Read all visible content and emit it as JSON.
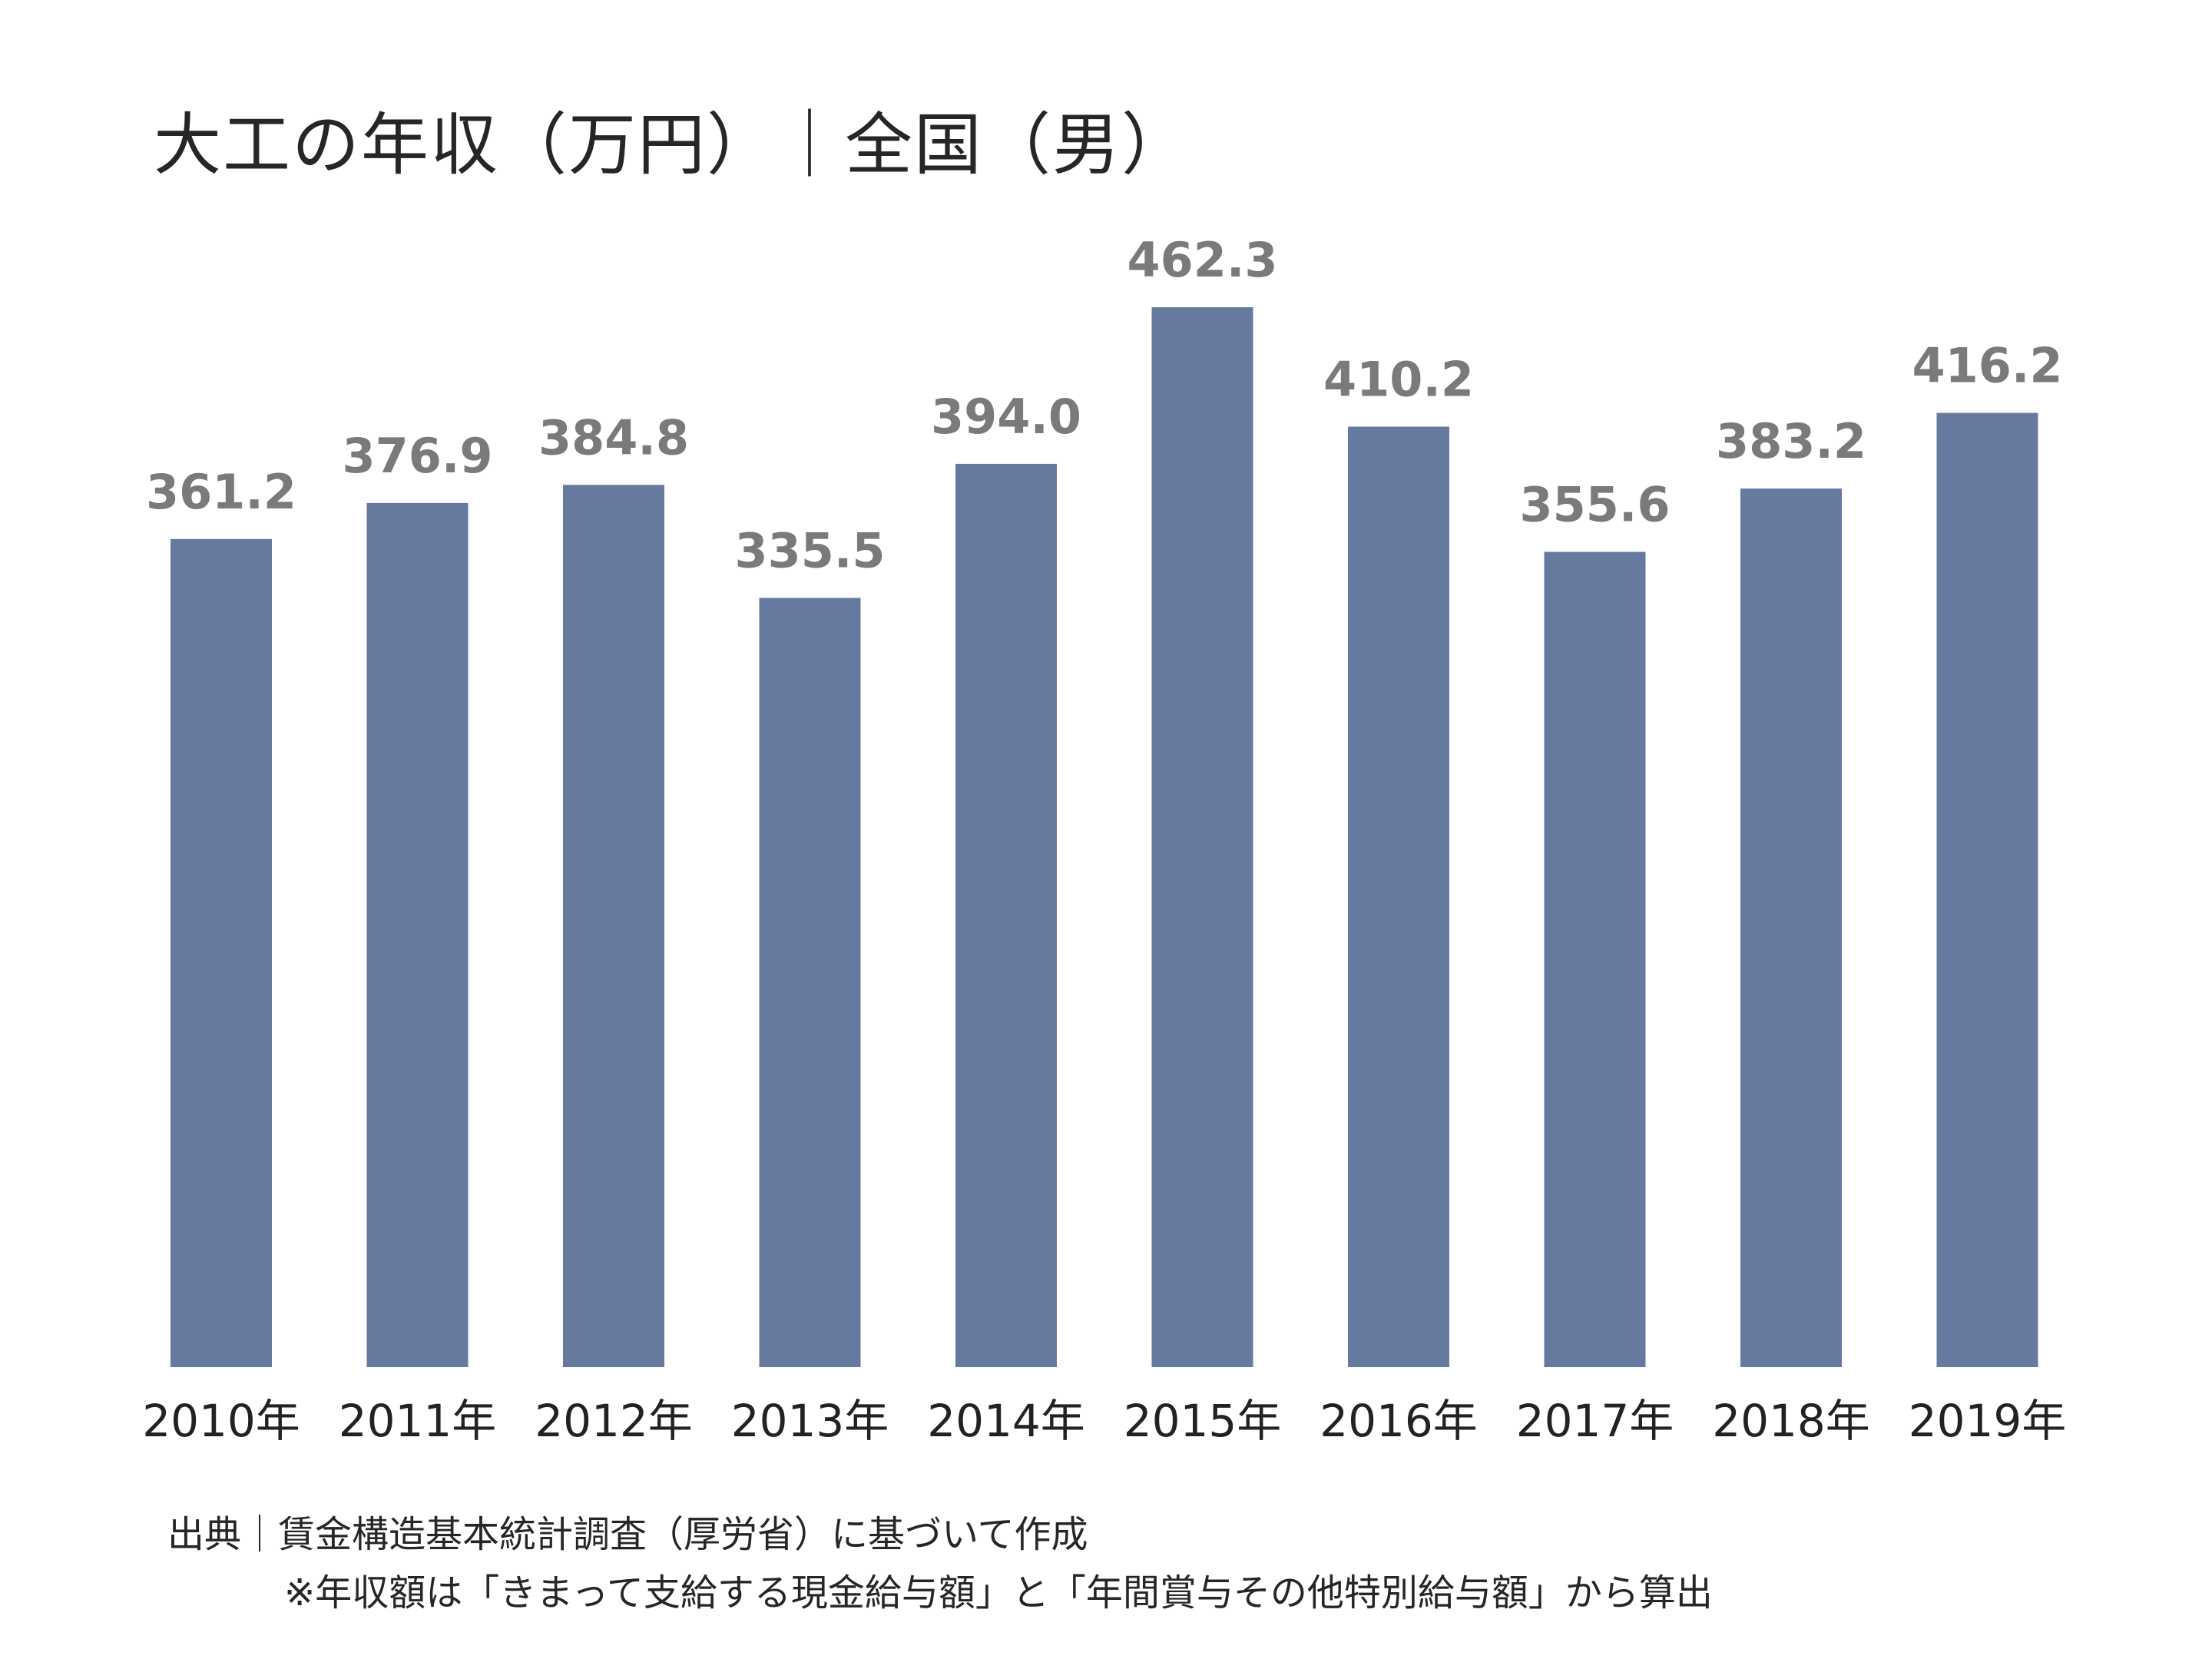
{
  "chart_data": {
    "type": "bar",
    "title": "大工の年収（万円）｜全国（男）",
    "categories": [
      "2010年",
      "2011年",
      "2012年",
      "2013年",
      "2014年",
      "2015年",
      "2016年",
      "2017年",
      "2018年",
      "2019年"
    ],
    "values": [
      361.2,
      376.9,
      384.8,
      335.5,
      394.0,
      462.3,
      410.2,
      355.6,
      383.2,
      416.2
    ],
    "value_labels": [
      "361.2",
      "376.9",
      "384.8",
      "335.5",
      "394.0",
      "462.3",
      "410.2",
      "355.6",
      "383.2",
      "416.2"
    ],
    "xlabel": "",
    "ylabel": "",
    "ylim": [
      0,
      462.3
    ],
    "grid": false,
    "legend": "none",
    "colors": {
      "bar": "#66799f",
      "value_label": "#7a7a7a",
      "category_label": "#222222"
    }
  },
  "notes": {
    "source": "出典｜賃金構造基本統計調査（厚労省）に基づいて作成",
    "remark": "※年収額は「きまって支給する現金給与額」と「年間賞与その他特別給与額」から算出"
  }
}
